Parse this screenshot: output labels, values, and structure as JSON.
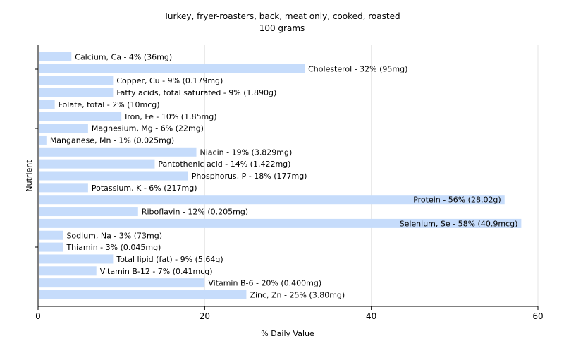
{
  "chart_data": {
    "type": "bar",
    "orientation": "horizontal",
    "title": "Turkey, fryer-roasters, back, meat only, cooked, roasted",
    "subtitle": "100 grams",
    "xlabel": "% Daily Value",
    "ylabel": "Nutrient",
    "xlim": [
      0,
      60
    ],
    "xticks": [
      "0",
      "20",
      "40",
      "60"
    ],
    "grid": true,
    "bar_color": "#c6dcfb",
    "categories": [
      "Calcium, Ca",
      "Cholesterol",
      "Copper, Cu",
      "Fatty acids, total saturated",
      "Folate, total",
      "Iron, Fe",
      "Magnesium, Mg",
      "Manganese, Mn",
      "Niacin",
      "Pantothenic acid",
      "Phosphorus, P",
      "Potassium, K",
      "Protein",
      "Riboflavin",
      "Selenium, Se",
      "Sodium, Na",
      "Thiamin",
      "Total lipid (fat)",
      "Vitamin B-12",
      "Vitamin B-6",
      "Zinc, Zn"
    ],
    "values": [
      4,
      32,
      9,
      9,
      2,
      10,
      6,
      1,
      19,
      14,
      18,
      6,
      56,
      12,
      58,
      3,
      3,
      9,
      7,
      20,
      25
    ],
    "labels": [
      "Calcium, Ca - 4% (36mg)",
      "Cholesterol - 32% (95mg)",
      "Copper, Cu - 9% (0.179mg)",
      "Fatty acids, total saturated - 9% (1.890g)",
      "Folate, total - 2% (10mcg)",
      "Iron, Fe - 10% (1.85mg)",
      "Magnesium, Mg - 6% (22mg)",
      "Manganese, Mn - 1% (0.025mg)",
      "Niacin - 19% (3.829mg)",
      "Pantothenic acid - 14% (1.422mg)",
      "Phosphorus, P - 18% (177mg)",
      "Potassium, K - 6% (217mg)",
      "Protein - 56% (28.02g)",
      "Riboflavin - 12% (0.205mg)",
      "Selenium, Se - 58% (40.9mcg)",
      "Sodium, Na - 3% (73mg)",
      "Thiamin - 3% (0.045mg)",
      "Total lipid (fat) - 9% (5.64g)",
      "Vitamin B-12 - 7% (0.41mcg)",
      "Vitamin B-6 - 20% (0.400mg)",
      "Zinc, Zn - 25% (3.80mg)"
    ]
  }
}
